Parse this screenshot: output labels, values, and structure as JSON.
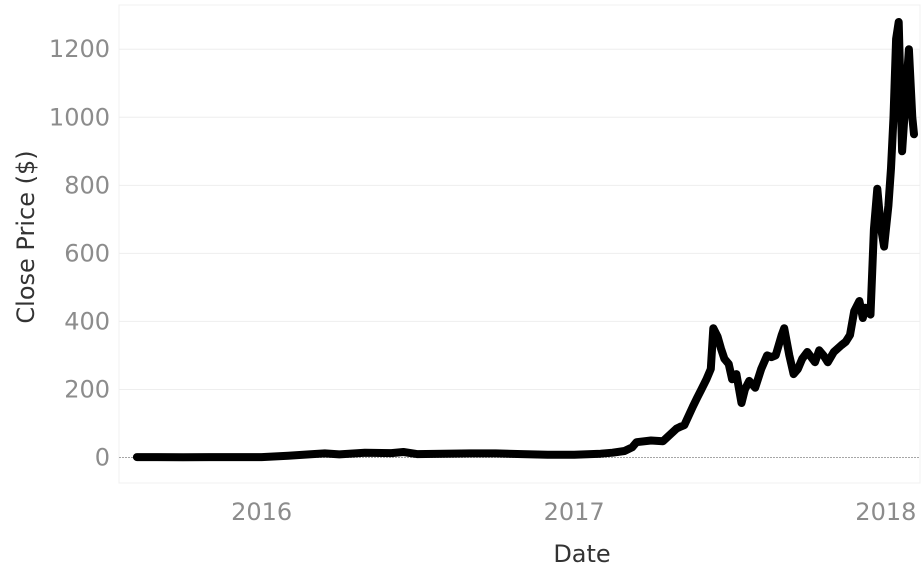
{
  "chart_data": {
    "type": "line",
    "xlabel": "Date",
    "ylabel": "Close Price ($)",
    "x_ticks": [
      "2016",
      "2017",
      "2018"
    ],
    "y_ticks": [
      0,
      200,
      400,
      600,
      800,
      1000,
      1200
    ],
    "ylim": [
      -75,
      1330
    ],
    "xlim": [
      "2015-07-18",
      "2018-02-10"
    ],
    "grid": true,
    "line_color": "#000000",
    "series": [
      {
        "x": [
          "2015-08-08",
          "2015-09-01",
          "2015-10-01",
          "2015-11-01",
          "2015-12-01",
          "2016-01-01",
          "2016-02-01",
          "2016-03-01",
          "2016-03-15",
          "2016-04-01",
          "2016-05-01",
          "2016-06-01",
          "2016-06-15",
          "2016-07-01",
          "2016-08-01",
          "2016-09-01",
          "2016-10-01",
          "2016-11-01",
          "2016-12-01",
          "2017-01-01",
          "2017-02-01",
          "2017-02-15",
          "2017-03-01",
          "2017-03-10",
          "2017-03-15",
          "2017-04-01",
          "2017-04-15",
          "2017-05-01",
          "2017-05-05",
          "2017-05-10",
          "2017-05-20",
          "2017-05-25",
          "2017-05-30",
          "2017-06-05",
          "2017-06-10",
          "2017-06-13",
          "2017-06-18",
          "2017-06-22",
          "2017-06-26",
          "2017-07-01",
          "2017-07-05",
          "2017-07-10",
          "2017-07-16",
          "2017-07-20",
          "2017-07-25",
          "2017-08-01",
          "2017-08-08",
          "2017-08-15",
          "2017-08-20",
          "2017-08-25",
          "2017-09-01",
          "2017-09-04",
          "2017-09-10",
          "2017-09-15",
          "2017-09-20",
          "2017-09-25",
          "2017-10-01",
          "2017-10-10",
          "2017-10-15",
          "2017-10-20",
          "2017-10-25",
          "2017-11-01",
          "2017-11-10",
          "2017-11-15",
          "2017-11-20",
          "2017-11-25",
          "2017-12-01",
          "2017-12-05",
          "2017-12-08",
          "2017-12-12",
          "2017-12-14",
          "2017-12-18",
          "2017-12-22",
          "2017-12-26",
          "2017-12-30",
          "2018-01-04",
          "2018-01-07",
          "2018-01-10",
          "2018-01-13",
          "2018-01-16",
          "2018-01-20",
          "2018-01-24",
          "2018-01-28",
          "2018-02-01",
          "2018-02-03"
        ],
        "y": [
          1,
          1,
          0.6,
          1,
          1,
          1,
          5,
          10,
          12,
          9,
          14,
          13,
          16,
          10,
          11,
          12,
          12,
          10,
          8,
          8,
          11,
          14,
          19,
          30,
          45,
          50,
          48,
          85,
          90,
          95,
          150,
          175,
          200,
          230,
          260,
          380,
          355,
          320,
          290,
          275,
          230,
          245,
          160,
          200,
          225,
          205,
          260,
          300,
          295,
          300,
          360,
          380,
          300,
          245,
          260,
          290,
          310,
          280,
          315,
          300,
          280,
          310,
          330,
          340,
          360,
          430,
          460,
          410,
          440,
          430,
          420,
          670,
          790,
          680,
          620,
          740,
          850,
          1000,
          1230,
          1280,
          900,
          1050,
          1200,
          1000,
          950
        ]
      }
    ]
  }
}
